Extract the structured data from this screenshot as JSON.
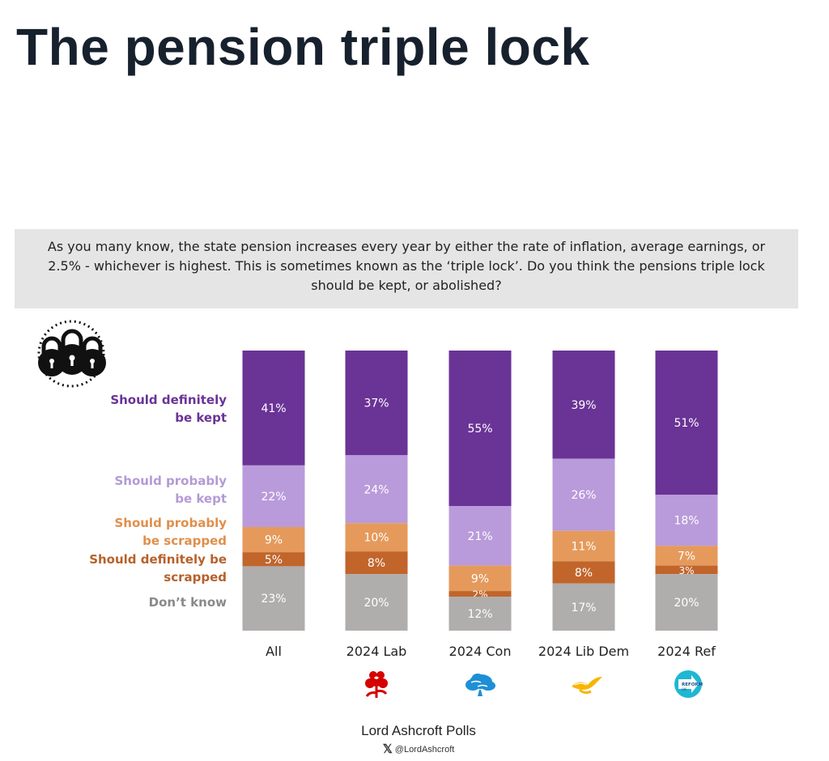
{
  "page": {
    "title": "The pension triple lock",
    "question": "As you many know, the state pension increases every year by either the rate of inflation, average earnings, or 2.5% - whichever is highest. This is sometimes known as the ‘triple lock’. Do you think the pensions triple lock should be kept, or abolished?",
    "source": "Lord Ashcroft Polls",
    "handle": "@LordAshcroft",
    "handle_icon": "x-logo-icon",
    "lock_icon": "padlocks-icon"
  },
  "chart_data": {
    "type": "bar",
    "stacked": true,
    "normalized_to": 100,
    "categories": [
      "All",
      "2024 Lab",
      "2024 Con",
      "2024 Lib Dem",
      "2024 Ref"
    ],
    "legend_placement": "left",
    "series": [
      {
        "name": "Should definitely be kept",
        "label_lines": [
          "Should definitely",
          "be kept"
        ],
        "color": "#6a3396",
        "label_color": "#ffffff",
        "values": [
          41,
          37,
          55,
          39,
          51
        ],
        "labels": [
          "41%",
          "37%",
          "55%",
          "39%",
          "51%"
        ]
      },
      {
        "name": "Should probably be kept",
        "label_lines": [
          "Should probably",
          "be kept"
        ],
        "color": "#b99bdb",
        "label_color": "#ffffff",
        "values": [
          22,
          24,
          21,
          26,
          18
        ],
        "labels": [
          "22%",
          "24%",
          "21%",
          "26%",
          "18%"
        ]
      },
      {
        "name": "Should probably be scrapped",
        "label_lines": [
          "Should probably",
          "be scrapped"
        ],
        "color": "#e59a5c",
        "label_color": "#ffffff",
        "values": [
          9,
          10,
          9,
          11,
          7
        ],
        "labels": [
          "9%",
          "10%",
          "9%",
          "11%",
          "7%"
        ]
      },
      {
        "name": "Should definitely be scrapped",
        "label_lines": [
          "Should definitely be",
          "scrapped"
        ],
        "color": "#c1652b",
        "label_color": "#ffffff",
        "values": [
          5,
          8,
          2,
          8,
          3
        ],
        "labels": [
          "5%",
          "8%",
          "2%",
          "8%",
          "3%"
        ]
      },
      {
        "name": "Don’t know",
        "label_lines": [
          "Don’t know"
        ],
        "color": "#b0adad",
        "label_color": "#ffffff",
        "values": [
          23,
          20,
          12,
          17,
          20
        ],
        "labels": [
          "23%",
          "20%",
          "12%",
          "17%",
          "20%"
        ]
      }
    ],
    "legend_colors": [
      "#6a3396",
      "#b49ad6",
      "#e08f4c",
      "#b6612a",
      "#8a8a8a"
    ],
    "party_logos": [
      null,
      "labour-rose-icon",
      "conservative-tree-icon",
      "libdem-bird-icon",
      "reform-uk-arrow-icon"
    ],
    "reform_logo_text": [
      "REFORM",
      "UK"
    ]
  }
}
